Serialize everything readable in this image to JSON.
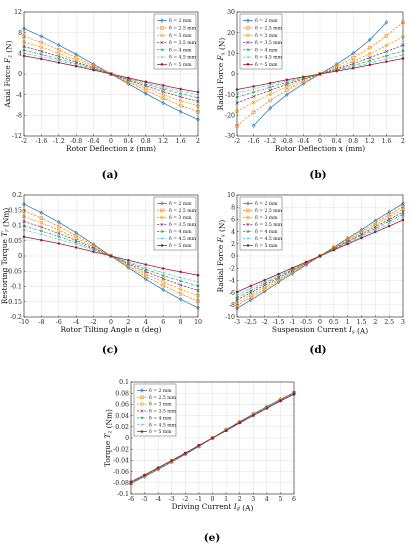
{
  "chart_data": [
    {
      "id": "a",
      "panel_label": "(a)",
      "type": "line",
      "xlabel": "Rotor Deflection z (mm)",
      "ylabel": "Axial Force F_z (N)",
      "xlim": [
        -2,
        2
      ],
      "ylim": [
        -12,
        12
      ],
      "xticks": [
        "-2",
        "-1.6",
        "-1.2",
        "-0.8",
        "-0.4",
        "0",
        "0.4",
        "0.8",
        "1.2",
        "1.6",
        "2"
      ],
      "yticks": [
        "-12",
        "-8",
        "-4",
        "0",
        "4",
        "8",
        "12"
      ],
      "x": [
        -2,
        -1.6,
        -1.2,
        -0.8,
        -0.4,
        0,
        0.4,
        0.8,
        1.2,
        1.6,
        2
      ],
      "series": [
        {
          "name": "δ = 2 mm",
          "color": "#1f77b4",
          "marker": "diamond",
          "dash": "solid",
          "values": [
            8.8,
            7.3,
            5.6,
            3.8,
            1.9,
            0,
            -1.9,
            -3.8,
            -5.6,
            -7.3,
            -8.8
          ]
        },
        {
          "name": "δ = 2.5 mm",
          "color": "#ff7f0e",
          "marker": "square",
          "dash": "dash",
          "values": [
            7.3,
            6.1,
            4.7,
            3.2,
            1.6,
            0,
            -1.6,
            -3.2,
            -4.7,
            -6.1,
            -7.3
          ]
        },
        {
          "name": "δ = 3 mm",
          "color": "#e8a000",
          "marker": "circle",
          "dash": "dash",
          "values": [
            6.2,
            5.2,
            4.0,
            2.7,
            1.4,
            0,
            -1.4,
            -2.7,
            -4.0,
            -5.2,
            -6.2
          ]
        },
        {
          "name": "δ = 3.5 mm",
          "color": "#7e2f8e",
          "marker": "x",
          "dash": "dash",
          "values": [
            5.3,
            4.4,
            3.4,
            2.3,
            1.2,
            0,
            -1.2,
            -2.3,
            -3.4,
            -4.4,
            -5.3
          ]
        },
        {
          "name": "δ = 4 mm",
          "color": "#2ca02c",
          "marker": "star",
          "dash": "dashdot",
          "values": [
            4.6,
            3.8,
            2.9,
            2.0,
            1.0,
            0,
            -1.0,
            -2.0,
            -2.9,
            -3.8,
            -4.6
          ]
        },
        {
          "name": "δ = 4.5 mm",
          "color": "#4dbeee",
          "marker": "plus",
          "dash": "dashdot",
          "values": [
            4.0,
            3.3,
            2.6,
            1.7,
            0.9,
            0,
            -0.9,
            -1.7,
            -2.6,
            -3.3,
            -4.0
          ]
        },
        {
          "name": "δ = 5 mm",
          "color": "#a2142f",
          "marker": "dot",
          "dash": "solid",
          "values": [
            3.5,
            2.9,
            2.2,
            1.5,
            0.75,
            0,
            -0.75,
            -1.5,
            -2.2,
            -2.9,
            -3.5
          ]
        }
      ]
    },
    {
      "id": "b",
      "panel_label": "(b)",
      "type": "line",
      "xlabel": "Rotor Deflection x (mm)",
      "ylabel": "Radial Force F_x (N)",
      "xlim": [
        -2,
        2
      ],
      "ylim": [
        -30,
        30
      ],
      "xticks": [
        "-2",
        "-1.6",
        "-1.2",
        "-0.8",
        "-0.4",
        "0",
        "0.4",
        "0.8",
        "1.2",
        "1.6",
        "2"
      ],
      "yticks": [
        "-30",
        "-20",
        "-10",
        "0",
        "10",
        "20",
        "30"
      ],
      "x": [
        -2,
        -1.6,
        -1.2,
        -0.8,
        -0.4,
        0,
        0.4,
        0.8,
        1.2,
        1.6,
        2
      ],
      "series": [
        {
          "name": "δ = 2 mm",
          "color": "#1f77b4",
          "marker": "diamond",
          "dash": "solid",
          "values": [
            null,
            -25,
            -16.5,
            -10,
            -4.7,
            0,
            4.7,
            10,
            16.5,
            25,
            null
          ]
        },
        {
          "name": "δ = 2.5 mm",
          "color": "#ff7f0e",
          "marker": "square",
          "dash": "dash",
          "values": [
            -25,
            -18.5,
            -12.8,
            -7.8,
            -3.7,
            0,
            3.7,
            7.8,
            12.8,
            18.5,
            25
          ]
        },
        {
          "name": "δ = 3 mm",
          "color": "#e8a000",
          "marker": "circle",
          "dash": "dash",
          "values": [
            -18,
            -13.8,
            -9.8,
            -6.1,
            -2.9,
            0,
            2.9,
            6.1,
            9.8,
            13.8,
            18
          ]
        },
        {
          "name": "δ = 3.5 mm",
          "color": "#7e2f8e",
          "marker": "x",
          "dash": "dash",
          "values": [
            -14,
            -10.9,
            -7.9,
            -5.0,
            -2.4,
            0,
            2.4,
            5.0,
            7.9,
            10.9,
            14
          ]
        },
        {
          "name": "δ = 4 mm",
          "color": "#2ca02c",
          "marker": "star",
          "dash": "dashdot",
          "values": [
            -11.2,
            -8.8,
            -6.4,
            -4.1,
            -2.0,
            0,
            2.0,
            4.1,
            6.4,
            8.8,
            11.2
          ]
        },
        {
          "name": "δ = 4.5 mm",
          "color": "#4dbeee",
          "marker": "plus",
          "dash": "dashdot",
          "values": [
            -9.2,
            -7.3,
            -5.3,
            -3.4,
            -1.7,
            0,
            1.7,
            3.4,
            5.3,
            7.3,
            9.2
          ]
        },
        {
          "name": "δ = 5 mm",
          "color": "#a2142f",
          "marker": "dot",
          "dash": "solid",
          "values": [
            -7.5,
            -6.0,
            -4.4,
            -2.8,
            -1.4,
            0,
            1.4,
            2.8,
            4.4,
            6.0,
            7.5
          ]
        }
      ]
    },
    {
      "id": "c",
      "panel_label": "(c)",
      "type": "line",
      "xlabel": "Rotor Tilting Angle α (deg)",
      "ylabel": "Restoring Torque T_r (Nm)",
      "xlim": [
        -10,
        10
      ],
      "ylim": [
        -0.2,
        0.2
      ],
      "xticks": [
        "-10",
        "-8",
        "-6",
        "-4",
        "-2",
        "0",
        "2",
        "4",
        "6",
        "8",
        "10"
      ],
      "yticks": [
        "-0.2",
        "-0.15",
        "-0.1",
        "-0.05",
        "0",
        "0.05",
        "0.1",
        "0.15",
        "0.2"
      ],
      "x": [
        -10,
        -8,
        -6,
        -4,
        -2,
        0,
        2,
        4,
        6,
        8,
        10
      ],
      "series": [
        {
          "name": "δ = 2 mm",
          "color": "#1f77b4",
          "marker": "diamond",
          "dash": "solid",
          "values": [
            0.17,
            0.142,
            0.111,
            0.076,
            0.038,
            0,
            -0.038,
            -0.076,
            -0.111,
            -0.142,
            -0.17
          ]
        },
        {
          "name": "δ = 2.5 mm",
          "color": "#ff7f0e",
          "marker": "square",
          "dash": "dash",
          "values": [
            0.148,
            0.124,
            0.097,
            0.067,
            0.034,
            0,
            -0.034,
            -0.067,
            -0.097,
            -0.124,
            -0.148
          ]
        },
        {
          "name": "δ = 3 mm",
          "color": "#e8a000",
          "marker": "circle",
          "dash": "dash",
          "values": [
            0.13,
            0.109,
            0.085,
            0.059,
            0.03,
            0,
            -0.03,
            -0.059,
            -0.085,
            -0.109,
            -0.13
          ]
        },
        {
          "name": "δ = 3.5 mm",
          "color": "#7e2f8e",
          "marker": "x",
          "dash": "dash",
          "values": [
            0.113,
            0.095,
            0.074,
            0.051,
            0.026,
            0,
            -0.026,
            -0.051,
            -0.074,
            -0.095,
            -0.113
          ]
        },
        {
          "name": "δ = 4 mm",
          "color": "#2ca02c",
          "marker": "star",
          "dash": "dashdot",
          "values": [
            0.098,
            0.082,
            0.064,
            0.044,
            0.022,
            0,
            -0.022,
            -0.044,
            -0.064,
            -0.082,
            -0.098
          ]
        },
        {
          "name": "δ = 4.5 mm",
          "color": "#4dbeee",
          "marker": "plus",
          "dash": "dashdot",
          "values": [
            0.085,
            0.071,
            0.055,
            0.038,
            0.019,
            0,
            -0.019,
            -0.038,
            -0.055,
            -0.071,
            -0.085
          ]
        },
        {
          "name": "δ = 5 mm",
          "color": "#a2142f",
          "marker": "dot",
          "dash": "solid",
          "values": [
            0.063,
            0.052,
            0.041,
            0.028,
            0.014,
            0,
            -0.014,
            -0.028,
            -0.041,
            -0.052,
            -0.063
          ]
        }
      ]
    },
    {
      "id": "d",
      "panel_label": "(d)",
      "type": "line",
      "xlabel": "Suspension Current I_s (A)",
      "ylabel": "Radial Force F_x (N)",
      "xlim": [
        -3,
        3
      ],
      "ylim": [
        -10,
        10
      ],
      "xticks": [
        "-3",
        "-2.5",
        "-2",
        "-1.5",
        "-1",
        "-0.5",
        "0",
        "0.5",
        "1",
        "1.5",
        "2",
        "2.5",
        "3"
      ],
      "yticks": [
        "-10",
        "-8",
        "-6",
        "-4",
        "-2",
        "0",
        "2",
        "4",
        "6",
        "8",
        "10"
      ],
      "x": [
        -3,
        -2.5,
        -2,
        -1.5,
        -1,
        -0.5,
        0,
        0.5,
        1,
        1.5,
        2,
        2.5,
        3
      ],
      "series": [
        {
          "name": "δ = 2 mm",
          "color": "#1f77b4",
          "marker": "diamond",
          "dash": "solid",
          "values": [
            -8.6,
            -7.2,
            -5.8,
            -4.3,
            -2.9,
            -1.45,
            0,
            1.45,
            2.9,
            4.3,
            5.8,
            7.2,
            8.6
          ]
        },
        {
          "name": "δ = 2.5 mm",
          "color": "#ff7f0e",
          "marker": "square",
          "dash": "dash",
          "values": [
            -8.1,
            -6.8,
            -5.4,
            -4.05,
            -2.7,
            -1.35,
            0,
            1.35,
            2.7,
            4.05,
            5.4,
            6.8,
            8.1
          ]
        },
        {
          "name": "δ = 3 mm",
          "color": "#e8a000",
          "marker": "circle",
          "dash": "dash",
          "values": [
            -7.7,
            -6.4,
            -5.1,
            -3.85,
            -2.55,
            -1.3,
            0,
            1.3,
            2.55,
            3.85,
            5.1,
            6.4,
            7.7
          ]
        },
        {
          "name": "δ = 3.5 mm",
          "color": "#7e2f8e",
          "marker": "x",
          "dash": "dash",
          "values": [
            -7.2,
            -6.0,
            -4.8,
            -3.6,
            -2.4,
            -1.2,
            0,
            1.2,
            2.4,
            3.6,
            4.8,
            6.0,
            7.2
          ]
        },
        {
          "name": "δ = 4 mm",
          "color": "#2ca02c",
          "marker": "star",
          "dash": "dashdot",
          "values": [
            -6.8,
            -5.7,
            -4.5,
            -3.4,
            -2.25,
            -1.13,
            0,
            1.13,
            2.25,
            3.4,
            4.5,
            5.7,
            6.8
          ]
        },
        {
          "name": "δ = 4.5 mm",
          "color": "#4dbeee",
          "marker": "plus",
          "dash": "dashdot",
          "values": [
            -6.4,
            -5.3,
            -4.25,
            -3.2,
            -2.1,
            -1.05,
            0,
            1.05,
            2.1,
            3.2,
            4.25,
            5.3,
            6.4
          ]
        },
        {
          "name": "δ = 5 mm",
          "color": "#a2142f",
          "marker": "dot",
          "dash": "solid",
          "values": [
            -5.9,
            -4.9,
            -3.95,
            -2.95,
            -1.97,
            -0.98,
            0,
            0.98,
            1.97,
            2.95,
            3.95,
            4.9,
            5.9
          ]
        }
      ]
    },
    {
      "id": "e",
      "panel_label": "(e)",
      "type": "line",
      "xlabel": "Driving Current I_d (A)",
      "ylabel": "Torque T_z (Nm)",
      "xlim": [
        -6,
        6
      ],
      "ylim": [
        -0.1,
        0.1
      ],
      "xticks": [
        "-6",
        "-5",
        "-4",
        "-3",
        "-2",
        "-1",
        "0",
        "1",
        "2",
        "3",
        "4",
        "5",
        "6"
      ],
      "yticks": [
        "-0.1",
        "-0.08",
        "-0.06",
        "-0.04",
        "-0.02",
        "0",
        "0.02",
        "0.04",
        "0.06",
        "0.08",
        "0.1"
      ],
      "x": [
        -6,
        -5,
        -4,
        -3,
        -2,
        -1,
        0,
        1,
        2,
        3,
        4,
        5,
        6
      ],
      "series": [
        {
          "name": "δ = 2 mm",
          "color": "#1f77b4",
          "marker": "diamond",
          "dash": "solid",
          "values": [
            -0.081,
            -0.069,
            -0.056,
            -0.043,
            -0.029,
            -0.015,
            0,
            0.015,
            0.029,
            0.043,
            0.056,
            0.069,
            0.081
          ]
        },
        {
          "name": "δ = 2.5 mm",
          "color": "#ff7f0e",
          "marker": "square",
          "dash": "dash",
          "values": [
            -0.081,
            -0.068,
            -0.055,
            -0.042,
            -0.028,
            -0.014,
            0,
            0.014,
            0.028,
            0.042,
            0.055,
            0.068,
            0.081
          ]
        },
        {
          "name": "δ = 3 mm",
          "color": "#e8a000",
          "marker": "circle",
          "dash": "dash",
          "values": [
            -0.08,
            -0.068,
            -0.055,
            -0.042,
            -0.028,
            -0.014,
            0,
            0.014,
            0.028,
            0.042,
            0.055,
            0.068,
            0.08
          ]
        },
        {
          "name": "δ = 3.5 mm",
          "color": "#7e2f8e",
          "marker": "x",
          "dash": "dash",
          "values": [
            -0.08,
            -0.067,
            -0.054,
            -0.041,
            -0.028,
            -0.014,
            0,
            0.014,
            0.028,
            0.041,
            0.054,
            0.067,
            0.08
          ]
        },
        {
          "name": "δ = 4 mm",
          "color": "#2ca02c",
          "marker": "star",
          "dash": "dashdot",
          "values": [
            -0.079,
            -0.067,
            -0.054,
            -0.041,
            -0.027,
            -0.014,
            0,
            0.014,
            0.027,
            0.041,
            0.054,
            0.067,
            0.079
          ]
        },
        {
          "name": "δ = 4.5 mm",
          "color": "#4dbeee",
          "marker": "plus",
          "dash": "dashdot",
          "values": [
            -0.079,
            -0.066,
            -0.053,
            -0.04,
            -0.027,
            -0.013,
            0,
            0.013,
            0.027,
            0.04,
            0.053,
            0.066,
            0.079
          ]
        },
        {
          "name": "δ = 5 mm",
          "color": "#a2142f",
          "marker": "dot",
          "dash": "solid",
          "values": [
            -0.078,
            -0.066,
            -0.053,
            -0.04,
            -0.027,
            -0.013,
            0,
            0.013,
            0.027,
            0.04,
            0.053,
            0.066,
            0.078
          ]
        }
      ]
    }
  ]
}
